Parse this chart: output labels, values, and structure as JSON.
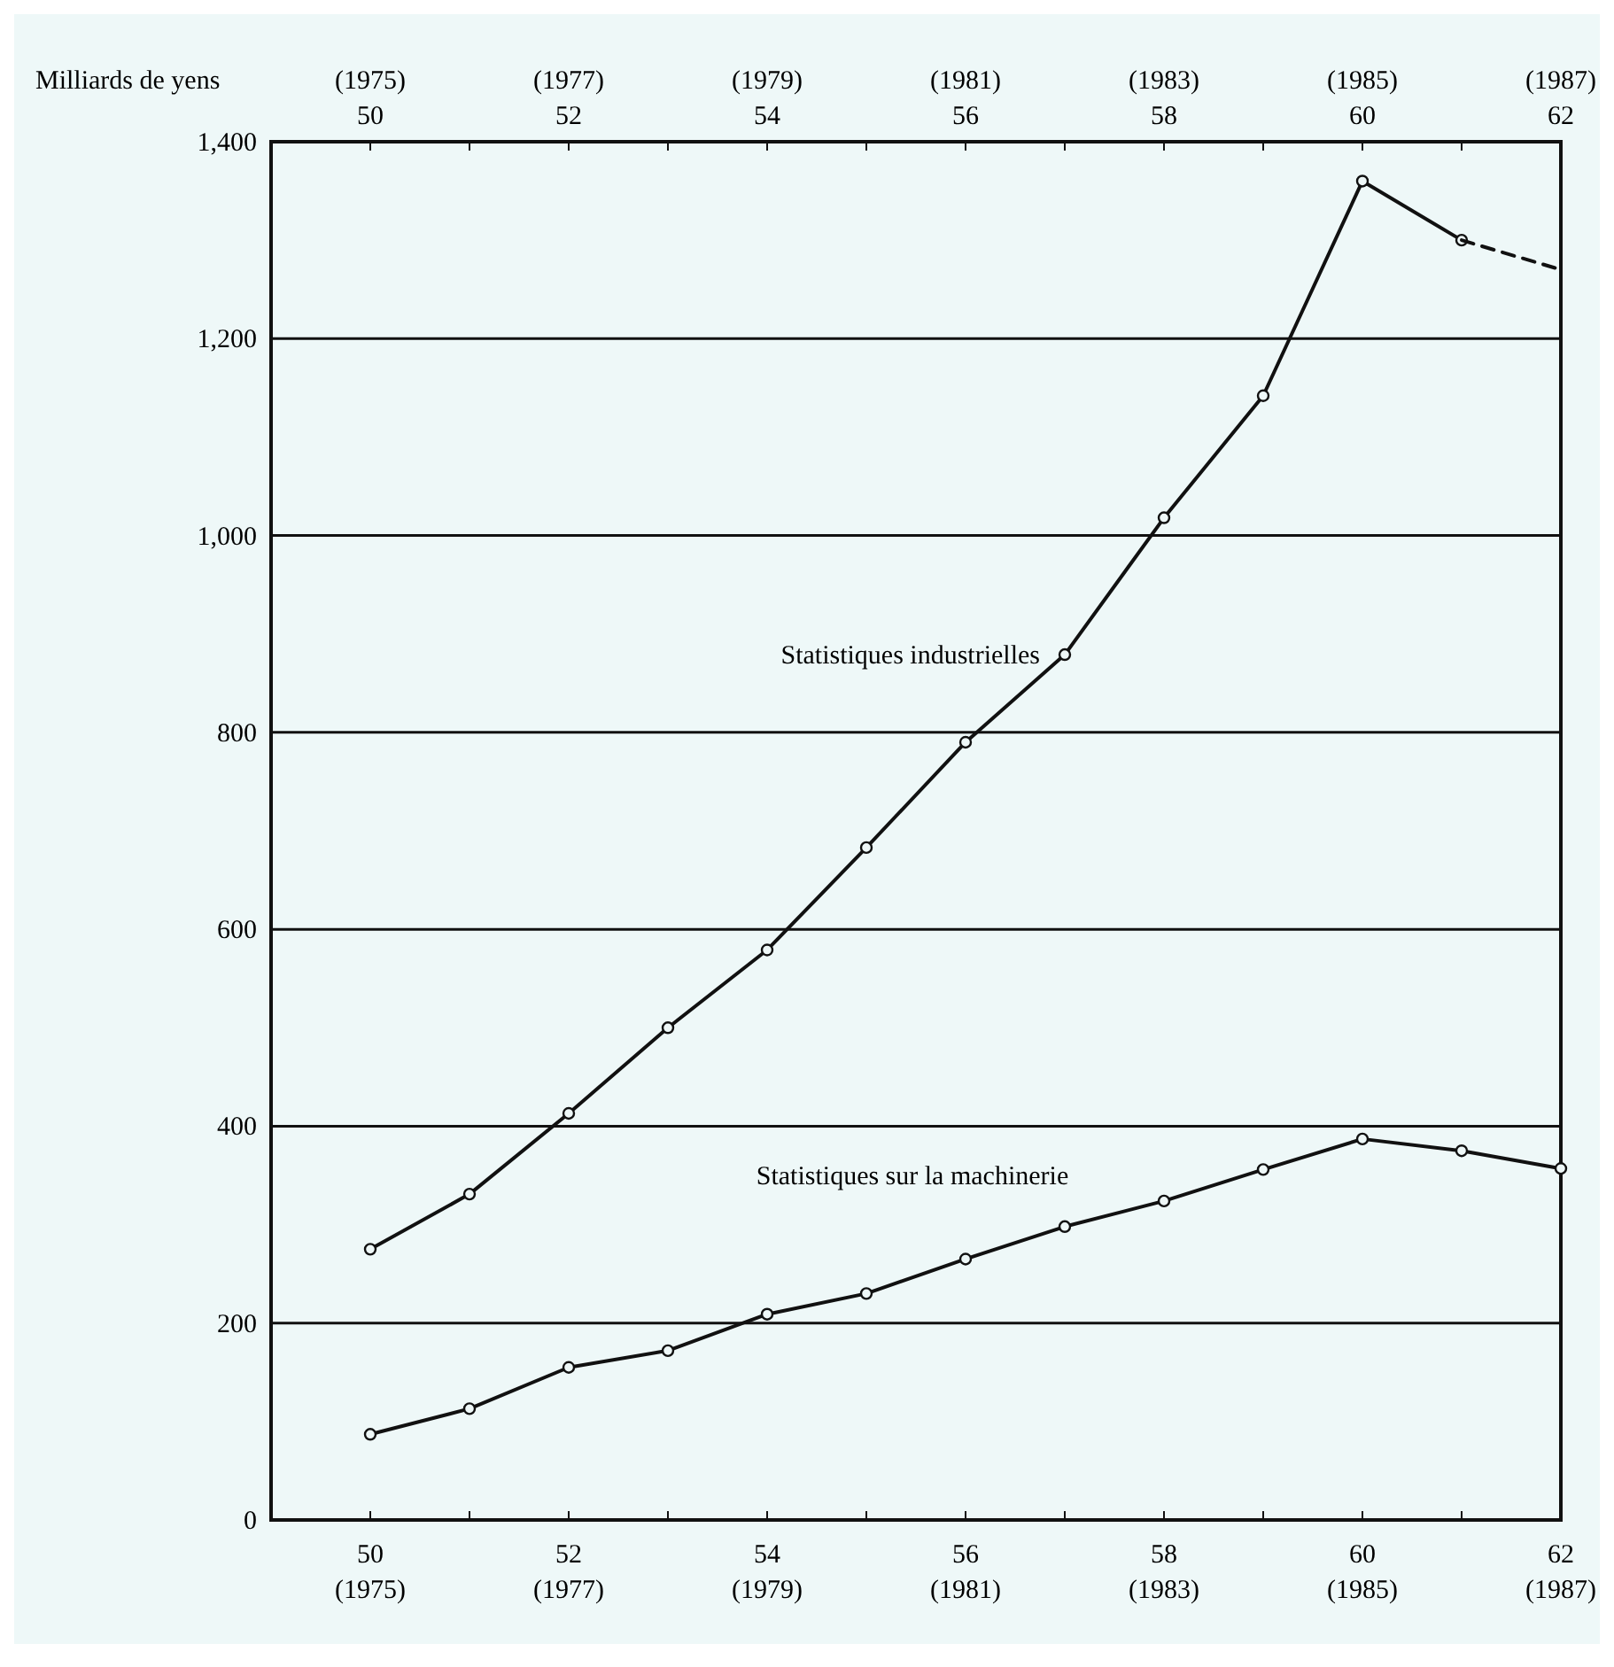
{
  "chart_data": {
    "type": "line",
    "ylabel": "Milliards de yens",
    "xlim": [
      49,
      62
    ],
    "ylim": [
      0,
      1400
    ],
    "xticks": [
      50,
      {
        "value": 51,
        "label": null
      },
      52,
      {
        "value": 53,
        "label": null
      },
      54,
      {
        "value": 55,
        "label": null
      },
      56,
      {
        "value": 57,
        "label": null
      },
      58,
      {
        "value": 59,
        "label": null
      },
      60,
      {
        "value": 61,
        "label": null
      },
      62
    ],
    "x2lim": [
      49,
      62
    ],
    "x2ticks": [
      50,
      {
        "value": 51,
        "label": null
      },
      52,
      {
        "value": 53,
        "label": null
      },
      54,
      {
        "value": 55,
        "label": null
      },
      56,
      {
        "value": 57,
        "label": null
      },
      58,
      {
        "value": 59,
        "label": null
      },
      60,
      {
        "value": 61,
        "label": null
      },
      62
    ],
    "yticks": [
      0,
      200,
      400,
      600,
      800,
      {
        "value": 1000,
        "label": "1,000"
      },
      {
        "value": 1200,
        "label": "1,200"
      },
      {
        "value": 1400,
        "label": "1,400"
      }
    ],
    "annotations": [
      "(1975)",
      "(1977)",
      "(1979)",
      "(1981)",
      "(1983)",
      "(1985)",
      "(1987)",
      "(1975)",
      "(1977)",
      "(1979)",
      "(1981)",
      "(1983)",
      "(1985)",
      "(1987)"
    ],
    "grid": "y",
    "marker": "circle",
    "line_style": "solid",
    "series": [
      {
        "name": "Statistiques industrielles",
        "color": "#111111",
        "x": [
          50,
          51,
          52,
          53,
          54,
          55,
          56,
          57,
          58,
          59,
          60,
          61
        ],
        "values": [
          275,
          331,
          413,
          500,
          579,
          683,
          790,
          879,
          1018,
          1142,
          1360,
          1300
        ]
      },
      {
        "color": "#111111",
        "x": [
          61,
          62
        ],
        "values": [
          1300,
          1270
        ],
        "line_style": "dashed",
        "marker": "none"
      },
      {
        "name": "Statistiques sur la machinerie",
        "color": "#111111",
        "x": [
          50,
          51,
          52,
          53,
          54,
          55,
          56,
          57,
          58,
          59,
          60,
          61,
          62
        ],
        "values": [
          87,
          113,
          155,
          172,
          209,
          230,
          265,
          298,
          324,
          356,
          387,
          375,
          357
        ]
      }
    ]
  }
}
